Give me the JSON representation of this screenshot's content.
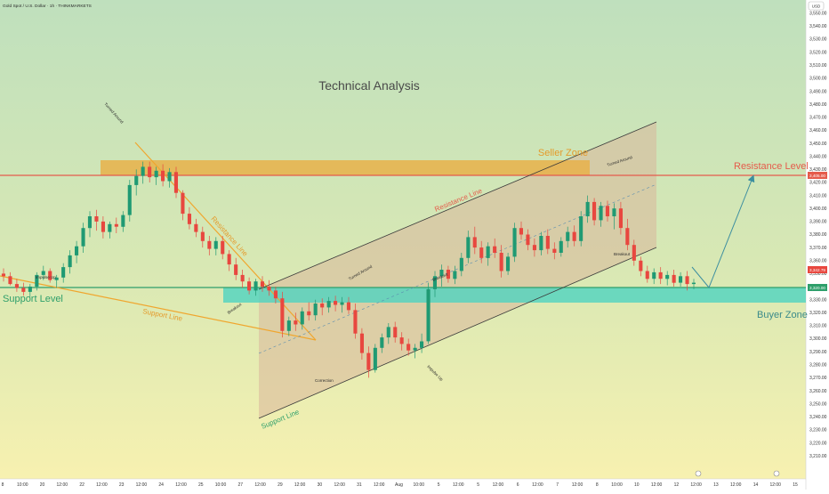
{
  "header": {
    "symbol_line": "Gold Spot / U.S. Dollar · 1h · THINKMARKETS",
    "currency": "USD"
  },
  "title": "Technical Analysis",
  "labels": {
    "seller_zone": "Seller Zone",
    "buyer_zone": "Buyer Zone",
    "resistance_level": "Resistance Level",
    "support_level": "Support Level",
    "resistance_line_1": "Resistance Line",
    "resistance_line_2": "Resistance Line",
    "support_line_1": "Support Line",
    "support_line_2": "Support Line"
  },
  "annotations": {
    "turned_around_1": "Turned Around",
    "impulse_up_1": "Impulse Up",
    "breakout_1": "Breakout",
    "turned_around_2": "Turned Around",
    "correction": "Correction",
    "breakout_2": "Breakout",
    "impulse_up_2": "Impulse Up",
    "turned_around_3": "Turned Around",
    "breakout_3": "Breakout"
  },
  "price_badges": {
    "resistance": "3,405.00",
    "current": "3,342.79",
    "support": "3,320.00"
  },
  "colors": {
    "bg_top": "#bfe0bd",
    "bg_bottom": "#f6f0b2",
    "candle_up": "#1f9a73",
    "candle_down": "#e8473f",
    "seller_zone": "#e8b24a",
    "buyer_zone": "#4fd3c0",
    "resistance_level": "#e55b4b",
    "support_level": "#2e9f6b",
    "orange_line": "#f0a62e",
    "channel_line": "#3a3a3a",
    "channel_fill": "#d9b79a",
    "arrow": "#3d8fa0",
    "text_teal": "#3a8a8a",
    "text_orange": "#e59a2a"
  },
  "chart_data": {
    "type": "candlestick",
    "title": "Technical Analysis",
    "ylim": [
      3204,
      3556
    ],
    "y_ticks": [
      "3,550.00",
      "3,540.00",
      "3,530.00",
      "3,520.00",
      "3,510.00",
      "3,500.00",
      "3,490.00",
      "3,480.00",
      "3,470.00",
      "3,460.00",
      "3,450.00",
      "3,440.00",
      "3,430.00",
      "3,420.00",
      "3,410.00",
      "3,400.00",
      "3,390.00",
      "3,380.00",
      "3,370.00",
      "3,360.00",
      "3,350.00",
      "3,340.00",
      "3,330.00",
      "3,320.00",
      "3,310.00",
      "3,300.00",
      "3,290.00",
      "3,280.00",
      "3,270.00",
      "3,260.00",
      "3,250.00",
      "3,240.00",
      "3,230.00",
      "3,220.00",
      "3,210.00"
    ],
    "x_ticks": [
      "8",
      "10:00",
      "20",
      "12:00",
      "22",
      "12:00",
      "23",
      "12:00",
      "24",
      "12:00",
      "25",
      "10:00",
      "27",
      "12:00",
      "29",
      "12:00",
      "30",
      "12:00",
      "31",
      "12:00",
      "Aug",
      "10:00",
      "5",
      "12:00",
      "5",
      "12:00",
      "6",
      "12:00",
      "7",
      "12:00",
      "8",
      "10:00",
      "10",
      "12:00",
      "12",
      "12:00",
      "13",
      "12:00",
      "14",
      "12:00",
      "15"
    ],
    "levels": {
      "resistance": 3405,
      "support": 3320,
      "seller_zone": [
        3405,
        3415
      ],
      "buyer_zone": [
        3313,
        3323
      ]
    },
    "grid": false,
    "series": [
      {
        "values": [
          [
            3350,
            3354,
            3344,
            3348
          ],
          [
            3348,
            3351,
            3341,
            3342
          ],
          [
            3342,
            3346,
            3336,
            3339
          ],
          [
            3339,
            3343,
            3333,
            3336
          ],
          [
            3336,
            3342,
            3332,
            3340
          ],
          [
            3340,
            3351,
            3337,
            3349
          ],
          [
            3349,
            3356,
            3345,
            3352
          ],
          [
            3352,
            3354,
            3343,
            3345
          ],
          [
            3345,
            3349,
            3339,
            3347
          ],
          [
            3347,
            3358,
            3343,
            3355
          ],
          [
            3355,
            3368,
            3350,
            3364
          ],
          [
            3364,
            3375,
            3358,
            3371
          ],
          [
            3371,
            3389,
            3366,
            3385
          ],
          [
            3385,
            3398,
            3378,
            3394
          ],
          [
            3394,
            3399,
            3383,
            3390
          ],
          [
            3390,
            3394,
            3377,
            3382
          ],
          [
            3382,
            3390,
            3377,
            3388
          ],
          [
            3388,
            3393,
            3381,
            3386
          ],
          [
            3386,
            3398,
            3382,
            3395
          ],
          [
            3395,
            3422,
            3390,
            3418
          ],
          [
            3418,
            3430,
            3410,
            3425
          ],
          [
            3425,
            3436,
            3419,
            3432
          ],
          [
            3432,
            3436,
            3420,
            3424
          ],
          [
            3424,
            3432,
            3418,
            3429
          ],
          [
            3429,
            3434,
            3417,
            3421
          ],
          [
            3421,
            3431,
            3416,
            3428
          ],
          [
            3428,
            3432,
            3408,
            3412
          ],
          [
            3412,
            3414,
            3391,
            3396
          ],
          [
            3396,
            3401,
            3384,
            3388
          ],
          [
            3388,
            3392,
            3378,
            3382
          ],
          [
            3382,
            3386,
            3370,
            3375
          ],
          [
            3375,
            3379,
            3364,
            3369
          ],
          [
            3369,
            3378,
            3364,
            3375
          ],
          [
            3375,
            3379,
            3361,
            3365
          ],
          [
            3365,
            3368,
            3352,
            3357
          ],
          [
            3357,
            3362,
            3345,
            3349
          ],
          [
            3349,
            3353,
            3339,
            3344
          ],
          [
            3344,
            3347,
            3334,
            3337
          ],
          [
            3337,
            3346,
            3333,
            3344
          ],
          [
            3344,
            3348,
            3336,
            3340
          ],
          [
            3340,
            3345,
            3333,
            3337
          ],
          [
            3337,
            3340,
            3327,
            3331
          ],
          [
            3331,
            3336,
            3301,
            3306
          ],
          [
            3306,
            3317,
            3302,
            3314
          ],
          [
            3314,
            3320,
            3306,
            3311
          ],
          [
            3311,
            3324,
            3307,
            3321
          ],
          [
            3321,
            3328,
            3314,
            3318
          ],
          [
            3318,
            3330,
            3314,
            3327
          ],
          [
            3327,
            3331,
            3318,
            3324
          ],
          [
            3324,
            3332,
            3320,
            3329
          ],
          [
            3329,
            3333,
            3321,
            3326
          ],
          [
            3326,
            3332,
            3320,
            3328
          ],
          [
            3328,
            3332,
            3319,
            3322
          ],
          [
            3322,
            3327,
            3300,
            3304
          ],
          [
            3304,
            3308,
            3284,
            3289
          ],
          [
            3289,
            3294,
            3270,
            3276
          ],
          [
            3276,
            3296,
            3274,
            3293
          ],
          [
            3293,
            3304,
            3289,
            3301
          ],
          [
            3301,
            3312,
            3296,
            3309
          ],
          [
            3309,
            3313,
            3297,
            3301
          ],
          [
            3301,
            3305,
            3291,
            3296
          ],
          [
            3296,
            3300,
            3287,
            3291
          ],
          [
            3291,
            3296,
            3285,
            3293
          ],
          [
            3293,
            3304,
            3289,
            3298
          ],
          [
            3298,
            3343,
            3296,
            3338
          ],
          [
            3338,
            3352,
            3332,
            3348
          ],
          [
            3348,
            3357,
            3340,
            3353
          ],
          [
            3353,
            3356,
            3343,
            3346
          ],
          [
            3346,
            3356,
            3342,
            3352
          ],
          [
            3352,
            3366,
            3348,
            3362
          ],
          [
            3362,
            3383,
            3358,
            3378
          ],
          [
            3378,
            3386,
            3365,
            3370
          ],
          [
            3370,
            3375,
            3358,
            3362
          ],
          [
            3362,
            3374,
            3356,
            3371
          ],
          [
            3371,
            3377,
            3362,
            3366
          ],
          [
            3366,
            3372,
            3347,
            3352
          ],
          [
            3352,
            3366,
            3349,
            3363
          ],
          [
            3363,
            3389,
            3359,
            3385
          ],
          [
            3385,
            3390,
            3376,
            3380
          ],
          [
            3380,
            3384,
            3368,
            3372
          ],
          [
            3372,
            3377,
            3363,
            3368
          ],
          [
            3368,
            3382,
            3364,
            3379
          ],
          [
            3379,
            3384,
            3365,
            3369
          ],
          [
            3369,
            3374,
            3361,
            3366
          ],
          [
            3366,
            3378,
            3363,
            3375
          ],
          [
            3375,
            3386,
            3370,
            3382
          ],
          [
            3382,
            3387,
            3371,
            3375
          ],
          [
            3375,
            3398,
            3371,
            3394
          ],
          [
            3394,
            3410,
            3389,
            3405
          ],
          [
            3405,
            3408,
            3387,
            3391
          ],
          [
            3391,
            3405,
            3386,
            3402
          ],
          [
            3402,
            3406,
            3390,
            3394
          ],
          [
            3394,
            3404,
            3384,
            3400
          ],
          [
            3400,
            3405,
            3380,
            3385
          ],
          [
            3385,
            3392,
            3368,
            3372
          ],
          [
            3372,
            3376,
            3356,
            3360
          ],
          [
            3360,
            3363,
            3348,
            3352
          ],
          [
            3352,
            3356,
            3343,
            3346
          ],
          [
            3346,
            3354,
            3342,
            3351
          ],
          [
            3351,
            3355,
            3342,
            3346
          ],
          [
            3346,
            3352,
            3341,
            3349
          ],
          [
            3349,
            3353,
            3340,
            3343
          ],
          [
            3343,
            3351,
            3340,
            3348
          ],
          [
            3348,
            3352,
            3337,
            3342
          ],
          [
            3342,
            3346,
            3338,
            3343
          ]
        ]
      }
    ]
  }
}
